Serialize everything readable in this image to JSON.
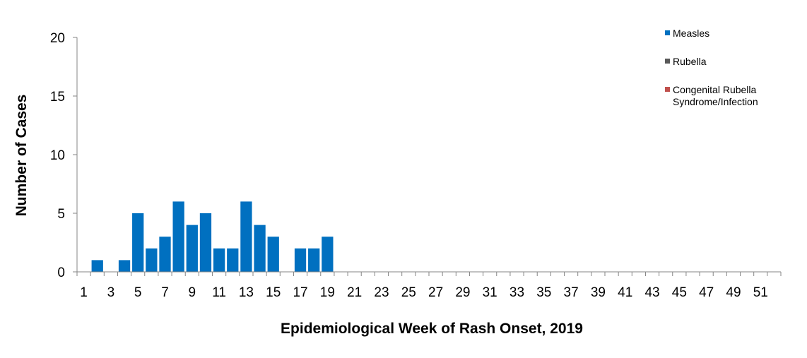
{
  "chart_data": {
    "type": "bar",
    "title": "",
    "xlabel": "Epidemiological Week of Rash Onset, 2019",
    "ylabel": "Number of Cases",
    "ylim": [
      0,
      20
    ],
    "yticks": [
      0,
      5,
      10,
      15,
      20
    ],
    "x": [
      1,
      2,
      3,
      4,
      5,
      6,
      7,
      8,
      9,
      10,
      11,
      12,
      13,
      14,
      15,
      16,
      17,
      18,
      19,
      20,
      21,
      22,
      23,
      24,
      25,
      26,
      27,
      28,
      29,
      30,
      31,
      32,
      33,
      34,
      35,
      36,
      37,
      38,
      39,
      40,
      41,
      42,
      43,
      44,
      45,
      46,
      47,
      48,
      49,
      50,
      51,
      52
    ],
    "xticks_labeled": [
      1,
      3,
      5,
      7,
      9,
      11,
      13,
      15,
      17,
      19,
      21,
      23,
      25,
      27,
      29,
      31,
      33,
      35,
      37,
      39,
      41,
      43,
      45,
      47,
      49,
      51
    ],
    "grid": false,
    "legend_position": "top-right",
    "series": [
      {
        "name": "Measles",
        "color": "#0070C0",
        "values": [
          0,
          1,
          0,
          1,
          5,
          2,
          3,
          6,
          4,
          5,
          2,
          2,
          6,
          4,
          3,
          0,
          2,
          2,
          3,
          0,
          0,
          0,
          0,
          0,
          0,
          0,
          0,
          0,
          0,
          0,
          0,
          0,
          0,
          0,
          0,
          0,
          0,
          0,
          0,
          0,
          0,
          0,
          0,
          0,
          0,
          0,
          0,
          0,
          0,
          0,
          0,
          0
        ]
      },
      {
        "name": "Rubella",
        "color": "#595959",
        "values": [
          0,
          0,
          0,
          0,
          0,
          0,
          0,
          0,
          0,
          0,
          0,
          0,
          0,
          0,
          0,
          0,
          0,
          0,
          0,
          0,
          0,
          0,
          0,
          0,
          0,
          0,
          0,
          0,
          0,
          0,
          0,
          0,
          0,
          0,
          0,
          0,
          0,
          0,
          0,
          0,
          0,
          0,
          0,
          0,
          0,
          0,
          0,
          0,
          0,
          0,
          0,
          0
        ]
      },
      {
        "name_lines": [
          "Congenital Rubella",
          "Syndrome/Infection"
        ],
        "color": "#C0504D",
        "values": [
          0,
          0,
          0,
          0,
          0,
          0,
          0,
          0,
          0,
          0,
          0,
          0,
          0,
          0,
          0,
          0,
          0,
          0,
          0,
          0,
          0,
          0,
          0,
          0,
          0,
          0,
          0,
          0,
          0,
          0,
          0,
          0,
          0,
          0,
          0,
          0,
          0,
          0,
          0,
          0,
          0,
          0,
          0,
          0,
          0,
          0,
          0,
          0,
          0,
          0,
          0,
          0
        ]
      }
    ]
  }
}
